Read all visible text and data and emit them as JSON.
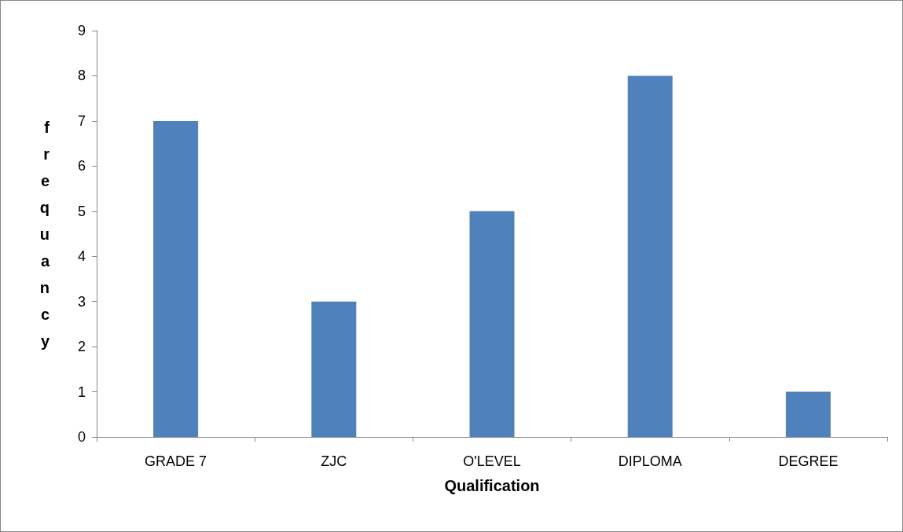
{
  "chart_data": {
    "type": "bar",
    "xlabel": "Qualification",
    "ylabel": "frequancy",
    "categories": [
      "GRADE 7",
      "ZJC",
      "O'LEVEL",
      "DIPLOMA",
      "DEGREE"
    ],
    "series": [
      {
        "color": "#4f81bd",
        "values": [
          7,
          3,
          5,
          8,
          1
        ]
      }
    ],
    "ylim": [
      0,
      9
    ],
    "yticks": [
      0,
      1,
      2,
      3,
      4,
      5,
      6,
      7,
      8,
      9
    ],
    "grid": false
  }
}
